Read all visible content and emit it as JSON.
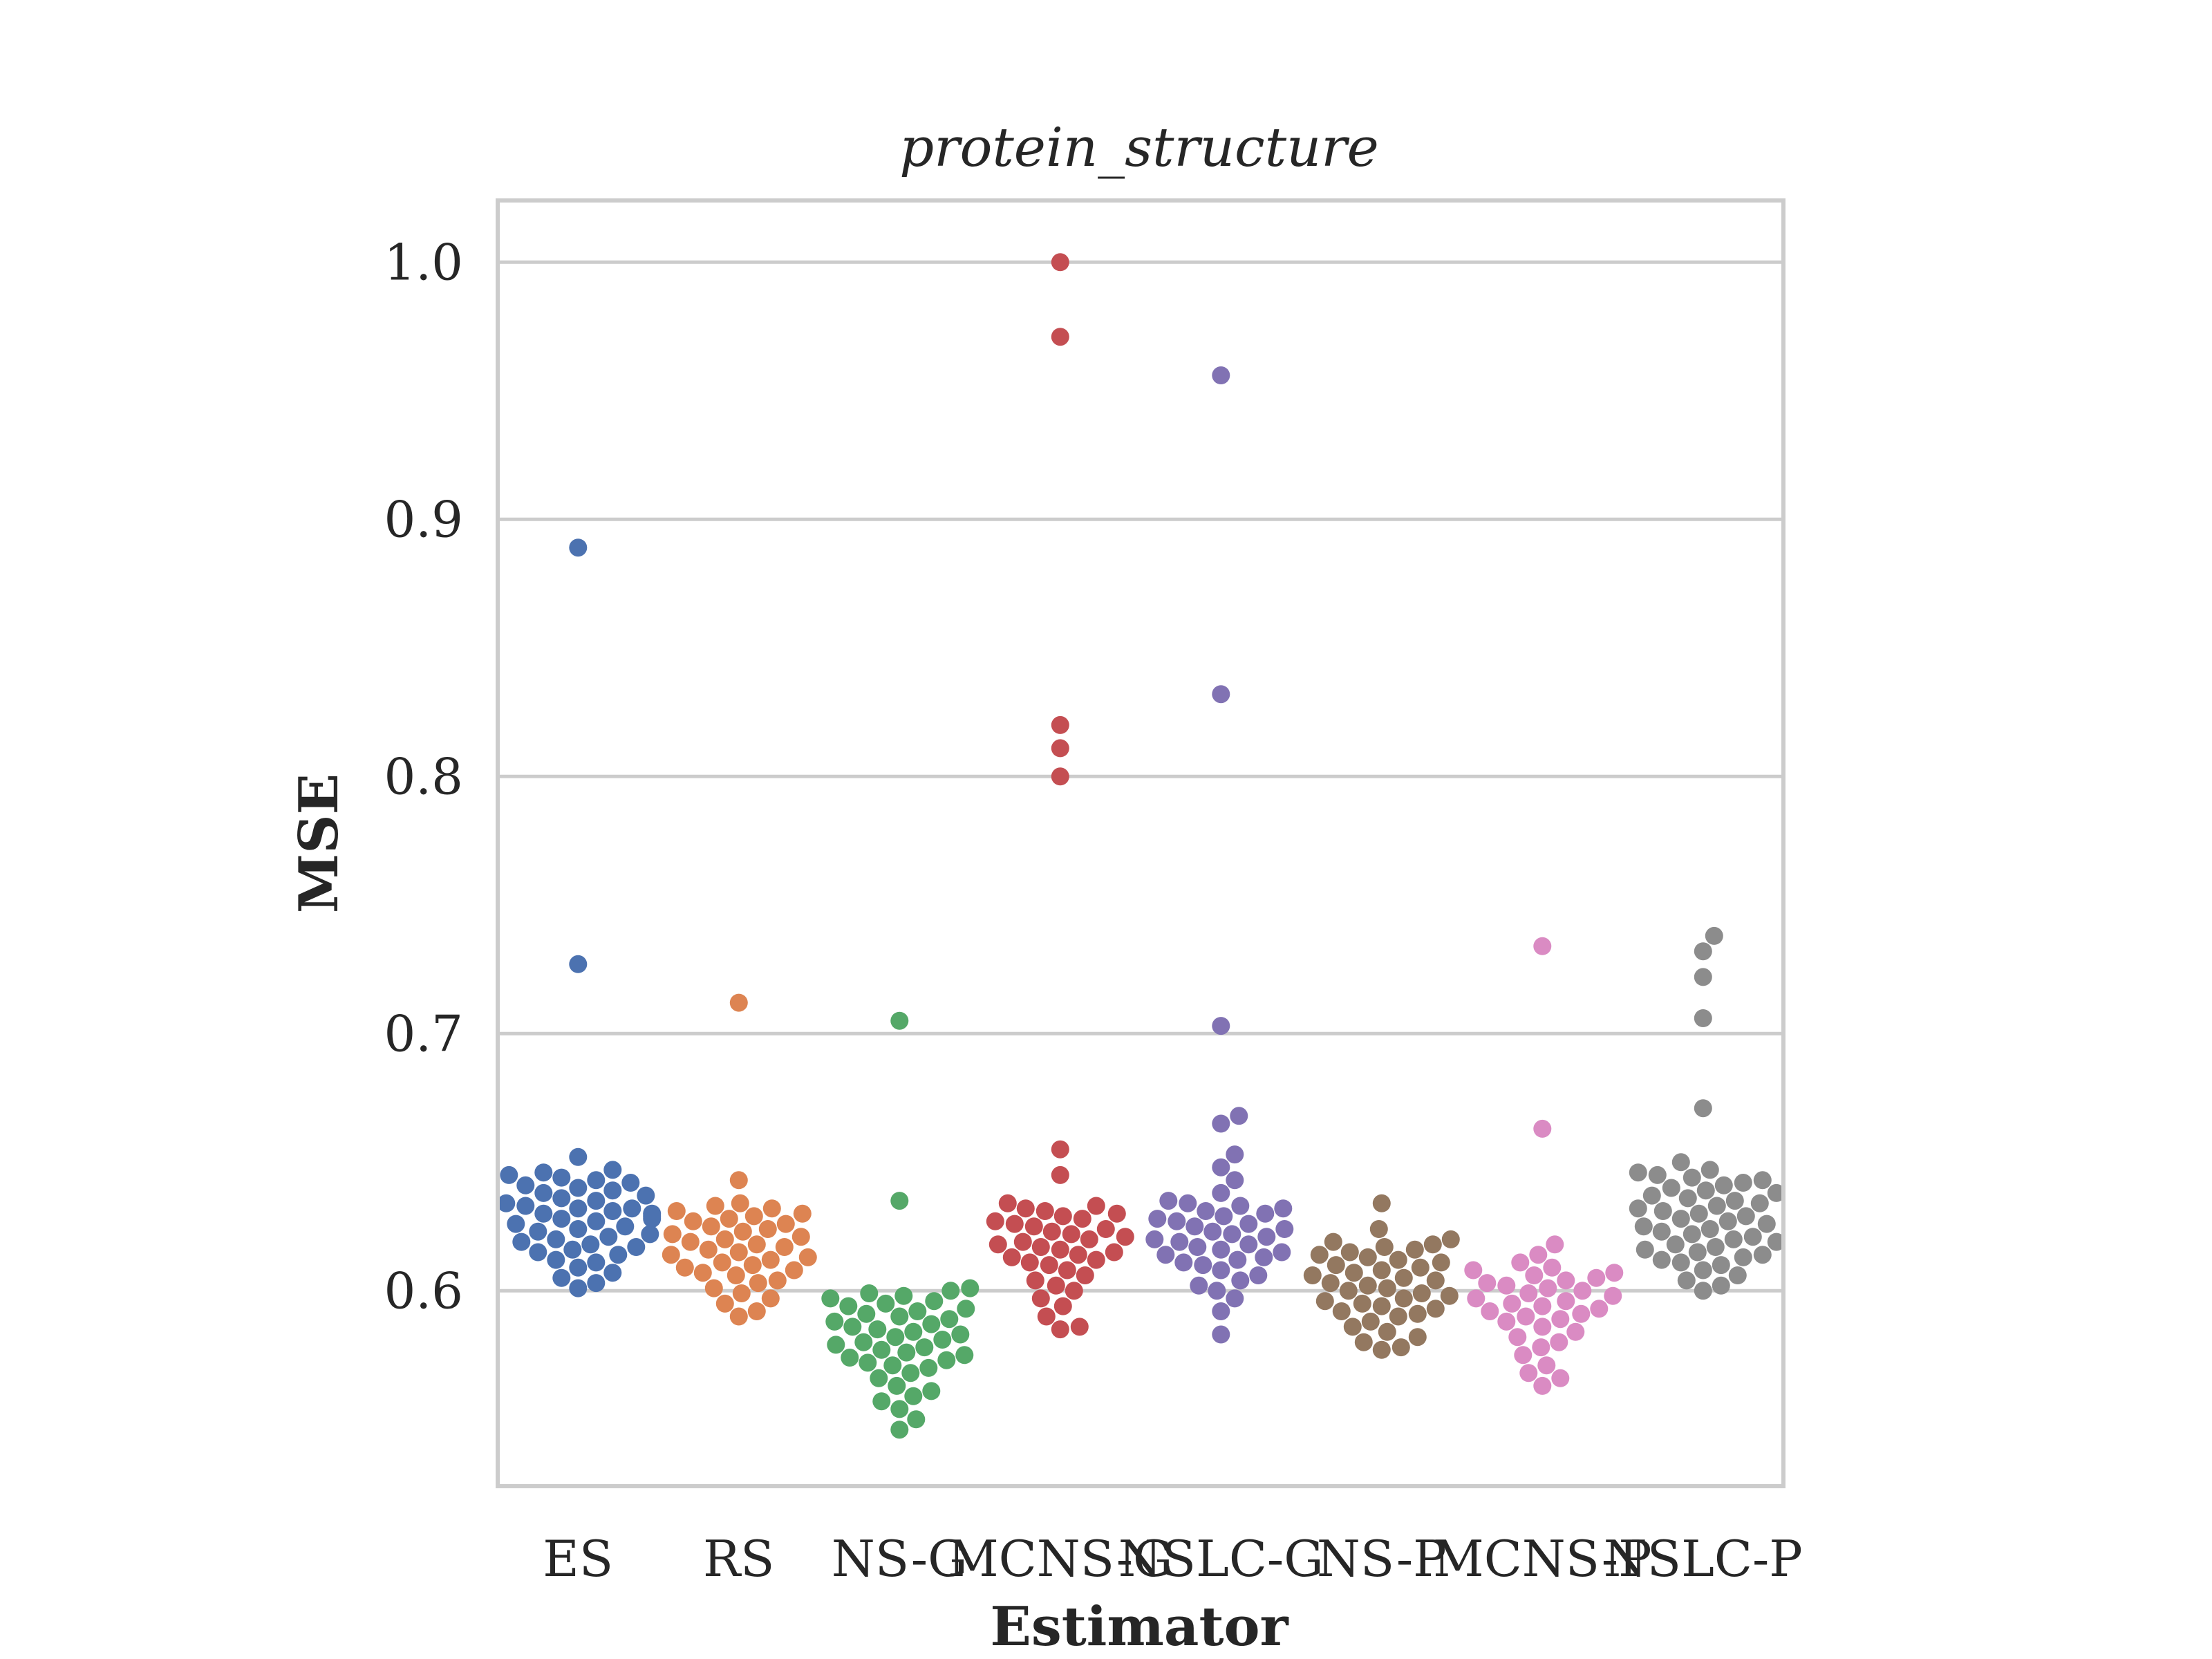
{
  "chart_data": {
    "type": "scatter",
    "subtype": "swarm",
    "title": "protein_structure",
    "xlabel": "Estimator",
    "ylabel": "MSE",
    "ylim": [
      0.524,
      1.024
    ],
    "yticks": [
      "0.6",
      "0.7",
      "0.8",
      "0.9",
      "1.0"
    ],
    "grid": true,
    "legend": "none",
    "categories": [
      "ES",
      "RS",
      "NS-G",
      "MCNS-G",
      "NSLC-G",
      "NS-P",
      "MCNS-P",
      "NSLC-P"
    ],
    "series": [
      {
        "category": "ES",
        "color": "#4c72b0",
        "values": [
          0.889,
          0.727,
          0.652,
          0.647,
          0.646,
          0.645,
          0.644,
          0.643,
          0.642,
          0.641,
          0.64,
          0.639,
          0.638,
          0.637,
          0.636,
          0.635,
          0.634,
          0.633,
          0.632,
          0.632,
          0.631,
          0.63,
          0.63,
          0.629,
          0.628,
          0.628,
          0.627,
          0.626,
          0.625,
          0.624,
          0.623,
          0.622,
          0.621,
          0.62,
          0.619,
          0.618,
          0.617,
          0.616,
          0.615,
          0.614,
          0.612,
          0.611,
          0.609,
          0.607,
          0.605,
          0.603,
          0.601
        ]
      },
      {
        "category": "RS",
        "color": "#dd8452",
        "values": [
          0.712,
          0.643,
          0.634,
          0.633,
          0.632,
          0.631,
          0.63,
          0.629,
          0.628,
          0.627,
          0.626,
          0.625,
          0.624,
          0.623,
          0.622,
          0.621,
          0.62,
          0.619,
          0.618,
          0.617,
          0.616,
          0.615,
          0.614,
          0.613,
          0.612,
          0.611,
          0.61,
          0.609,
          0.608,
          0.607,
          0.606,
          0.604,
          0.603,
          0.601,
          0.599,
          0.597,
          0.595,
          0.592,
          0.59
        ]
      },
      {
        "category": "NS-G",
        "color": "#55a868",
        "values": [
          0.705,
          0.635,
          0.601,
          0.6,
          0.599,
          0.598,
          0.597,
          0.596,
          0.595,
          0.594,
          0.593,
          0.592,
          0.591,
          0.59,
          0.589,
          0.588,
          0.587,
          0.586,
          0.585,
          0.584,
          0.583,
          0.582,
          0.581,
          0.58,
          0.579,
          0.578,
          0.577,
          0.576,
          0.575,
          0.574,
          0.573,
          0.572,
          0.571,
          0.57,
          0.568,
          0.566,
          0.563,
          0.561,
          0.559,
          0.557,
          0.554,
          0.55,
          0.546
        ]
      },
      {
        "category": "MCNS-G",
        "color": "#c44e52",
        "values": [
          1.0,
          0.971,
          0.82,
          0.811,
          0.8,
          0.655,
          0.645,
          0.634,
          0.633,
          0.632,
          0.631,
          0.63,
          0.629,
          0.628,
          0.627,
          0.626,
          0.625,
          0.624,
          0.623,
          0.622,
          0.621,
          0.62,
          0.619,
          0.618,
          0.617,
          0.616,
          0.615,
          0.614,
          0.613,
          0.612,
          0.611,
          0.61,
          0.608,
          0.606,
          0.604,
          0.602,
          0.6,
          0.597,
          0.594,
          0.59,
          0.586,
          0.585
        ]
      },
      {
        "category": "NSLC-G",
        "color": "#8172b3",
        "values": [
          0.956,
          0.832,
          0.703,
          0.668,
          0.665,
          0.653,
          0.648,
          0.643,
          0.638,
          0.635,
          0.634,
          0.633,
          0.632,
          0.631,
          0.63,
          0.629,
          0.628,
          0.627,
          0.626,
          0.625,
          0.624,
          0.623,
          0.622,
          0.621,
          0.62,
          0.619,
          0.618,
          0.617,
          0.616,
          0.615,
          0.614,
          0.613,
          0.612,
          0.611,
          0.61,
          0.608,
          0.606,
          0.604,
          0.602,
          0.6,
          0.597,
          0.592,
          0.583
        ]
      },
      {
        "category": "NS-P",
        "color": "#937860",
        "values": [
          0.634,
          0.624,
          0.62,
          0.619,
          0.618,
          0.617,
          0.616,
          0.615,
          0.614,
          0.613,
          0.612,
          0.611,
          0.61,
          0.609,
          0.608,
          0.607,
          0.606,
          0.605,
          0.604,
          0.603,
          0.602,
          0.601,
          0.6,
          0.599,
          0.598,
          0.597,
          0.596,
          0.595,
          0.594,
          0.593,
          0.592,
          0.591,
          0.59,
          0.588,
          0.586,
          0.584,
          0.582,
          0.58,
          0.578,
          0.577
        ]
      },
      {
        "category": "MCNS-P",
        "color": "#da8bc3",
        "values": [
          0.734,
          0.663,
          0.618,
          0.614,
          0.611,
          0.609,
          0.608,
          0.607,
          0.606,
          0.605,
          0.604,
          0.603,
          0.602,
          0.601,
          0.6,
          0.599,
          0.598,
          0.597,
          0.596,
          0.595,
          0.594,
          0.593,
          0.592,
          0.591,
          0.59,
          0.589,
          0.588,
          0.586,
          0.584,
          0.582,
          0.58,
          0.578,
          0.575,
          0.571,
          0.568,
          0.566,
          0.563
        ]
      },
      {
        "category": "NSLC-P",
        "color": "#8c8c8c",
        "values": [
          0.738,
          0.732,
          0.722,
          0.706,
          0.671,
          0.65,
          0.647,
          0.646,
          0.645,
          0.644,
          0.643,
          0.642,
          0.641,
          0.64,
          0.639,
          0.638,
          0.637,
          0.636,
          0.635,
          0.634,
          0.633,
          0.632,
          0.631,
          0.63,
          0.629,
          0.628,
          0.627,
          0.626,
          0.625,
          0.624,
          0.623,
          0.622,
          0.621,
          0.62,
          0.619,
          0.618,
          0.617,
          0.616,
          0.615,
          0.614,
          0.613,
          0.612,
          0.611,
          0.61,
          0.608,
          0.606,
          0.604,
          0.602,
          0.6
        ]
      }
    ]
  }
}
